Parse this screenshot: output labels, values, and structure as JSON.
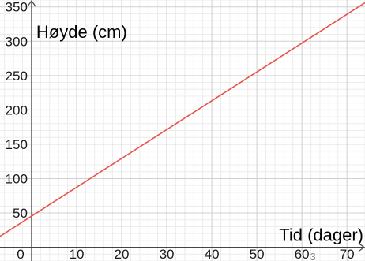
{
  "chart_data": {
    "type": "line",
    "xlabel": "Tid (dager)",
    "ylabel": "Høyde (cm)",
    "xlim": [
      -7,
      74
    ],
    "ylim": [
      -20,
      360
    ],
    "x_ticks": [
      0,
      10,
      20,
      30,
      40,
      50,
      60,
      70
    ],
    "y_ticks": [
      50,
      100,
      150,
      200,
      250,
      300,
      350
    ],
    "x_tick_labels": [
      "0",
      "10",
      "20",
      "30",
      "40",
      "50",
      "60",
      "70"
    ],
    "y_tick_labels": [
      "50",
      "100",
      "150",
      "200",
      "250",
      "300",
      "350"
    ],
    "grid": true,
    "series": [
      {
        "x": [
          -7,
          74
        ],
        "y": [
          16,
          356
        ]
      }
    ],
    "annotation": "3",
    "colors": {
      "line": "#e8504a",
      "grid_major": "#d0d0d0",
      "grid_minor": "#ececec",
      "axis": "#444444"
    }
  }
}
